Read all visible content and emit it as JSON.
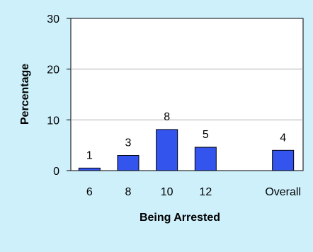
{
  "chart_data": {
    "type": "bar",
    "title": "",
    "xlabel": "Being Arrested",
    "ylabel": "Percentage",
    "categories": [
      "6",
      "8",
      "10",
      "12",
      "",
      "Overall"
    ],
    "values": [
      0.5,
      3,
      8.1,
      4.6,
      null,
      4
    ],
    "data_labels": [
      "1",
      "3",
      "8",
      "5",
      "",
      "4"
    ],
    "yticks": [
      "0",
      "10",
      "20",
      "30"
    ],
    "ylim": [
      0,
      30
    ],
    "grid": true,
    "legend": "none",
    "colors": {
      "bar_fill": "#3355ee",
      "bar_stroke": "#000000",
      "plot_background": "#ffffff",
      "outer_background": "#cdf0fb",
      "gridline": "#b0b0b0"
    }
  }
}
